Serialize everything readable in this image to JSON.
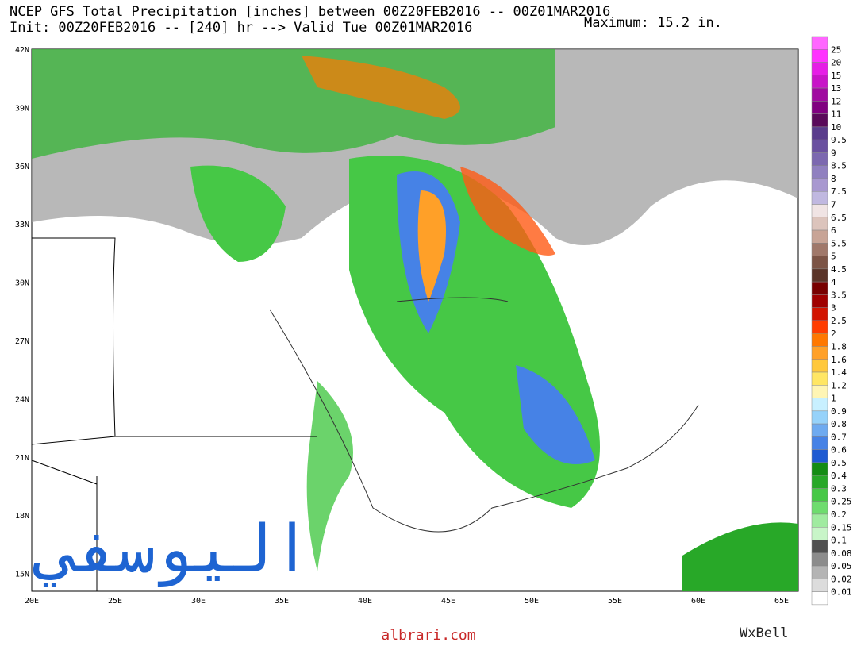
{
  "header": {
    "line1": "NCEP GFS Total Precipitation [inches] between 00Z20FEB2016 -- 00Z01MAR2016",
    "line2": "Init: 00Z20FEB2016 -- [240] hr --> Valid Tue 00Z01MAR2016",
    "maximum": "Maximum: 15.2 in."
  },
  "map": {
    "lat_labels": [
      "42N",
      "39N",
      "36N",
      "33N",
      "30N",
      "27N",
      "24N",
      "21N",
      "18N",
      "15N"
    ],
    "lon_labels": [
      "20E",
      "25E",
      "30E",
      "35E",
      "40E",
      "45E",
      "50E",
      "55E",
      "60E",
      "65E"
    ]
  },
  "colorbar": {
    "labels": [
      "25",
      "20",
      "15",
      "13",
      "12",
      "11",
      "10",
      "9.5",
      "9",
      "8.5",
      "8",
      "7.5",
      "7",
      "6.5",
      "6",
      "5.5",
      "5",
      "4.5",
      "4",
      "3.5",
      "3",
      "2.5",
      "2",
      "1.8",
      "1.6",
      "1.4",
      "1.2",
      "1",
      "0.9",
      "0.8",
      "0.7",
      "0.6",
      "0.5",
      "0.4",
      "0.3",
      "0.25",
      "0.2",
      "0.15",
      "0.1",
      "0.08",
      "0.05",
      "0.02",
      "0.01"
    ],
    "colors": [
      "#ff66ff",
      "#ff33ff",
      "#e61ee6",
      "#c814c8",
      "#a00aa0",
      "#800080",
      "#5a0a5a",
      "#5a3c8c",
      "#6a50a0",
      "#7c68b0",
      "#9080c0",
      "#a898d0",
      "#c0b8e0",
      "#f0e4e4",
      "#dcc4bc",
      "#c8a496",
      "#a0786a",
      "#7c5446",
      "#5a3428",
      "#780000",
      "#a00000",
      "#d21400",
      "#ff3c00",
      "#ff7800",
      "#ffa028",
      "#ffc83c",
      "#ffe664",
      "#fff5b4",
      "#c8f0ff",
      "#96d2fa",
      "#6eaaf0",
      "#4682e6",
      "#1e5ad2",
      "#148c14",
      "#28a828",
      "#46c846",
      "#6edc6e",
      "#a0eba0",
      "#c8f5c8",
      "#505050",
      "#8c8c8c",
      "#b4b4b4",
      "#dcdcdc",
      "#ffffff"
    ]
  },
  "watermark": "اليوسفي",
  "footer": "albrari.com",
  "brand": "WxBell"
}
